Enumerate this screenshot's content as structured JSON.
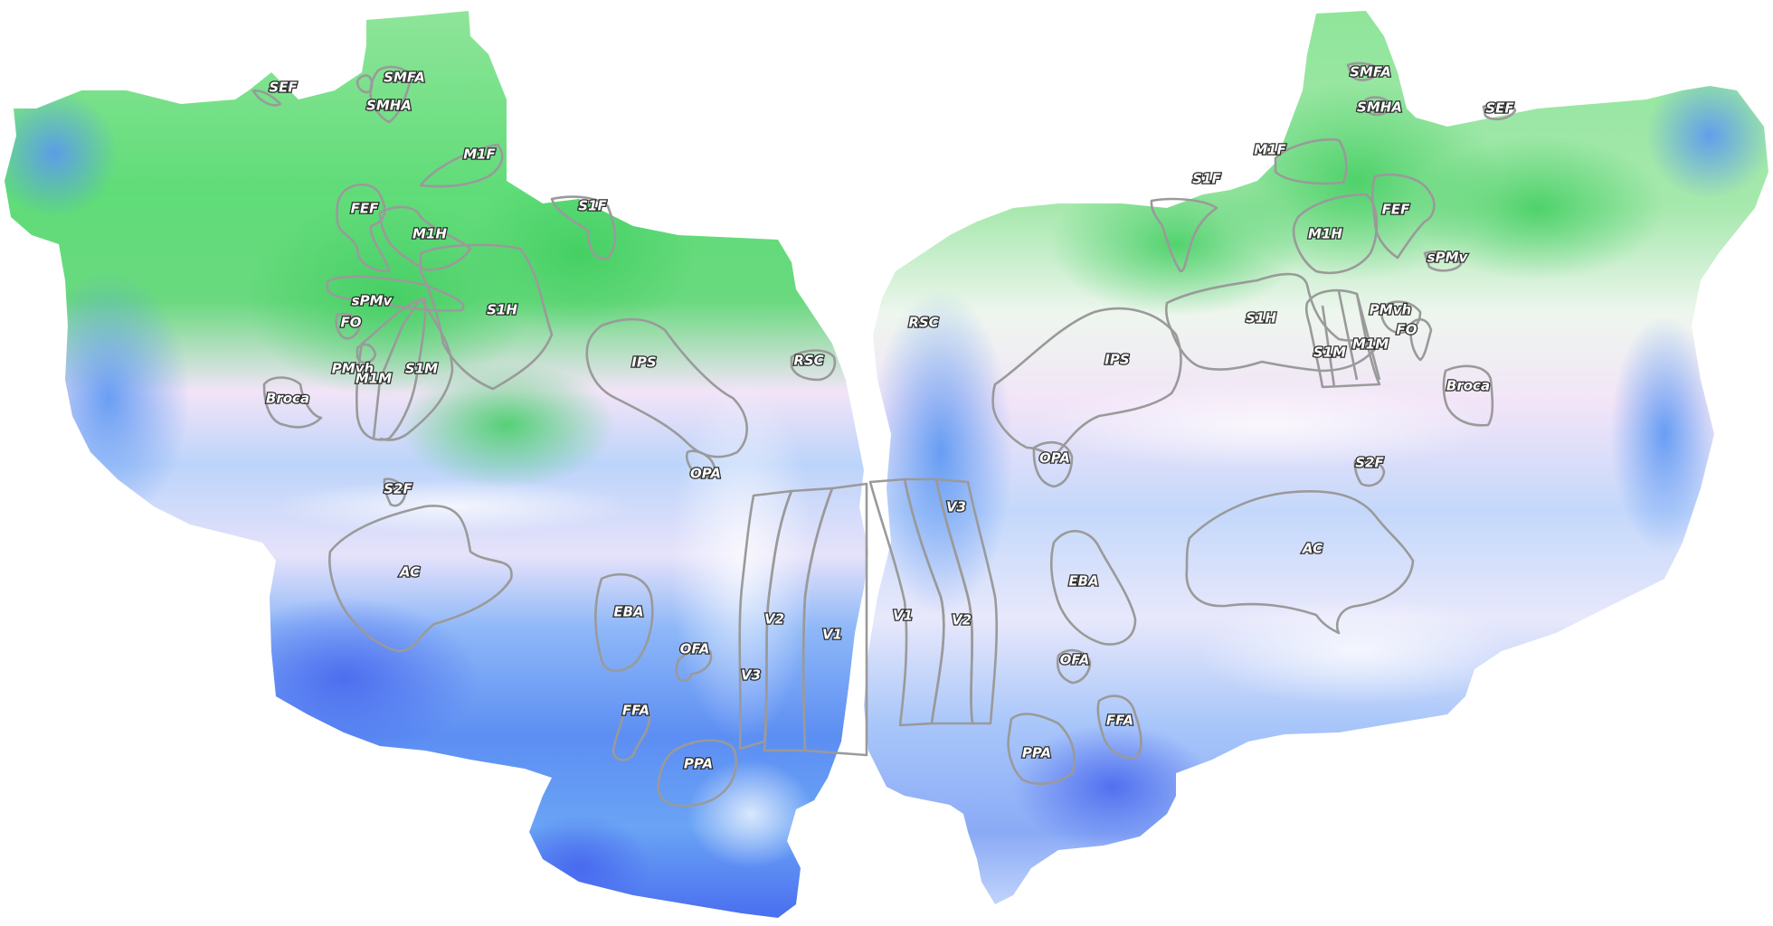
{
  "colors": {
    "green_strong": "#4fd66a",
    "green_light": "#8fe59a",
    "pink": "#f2e4f8",
    "blue_light": "#b8d4fb",
    "blue": "#62a0f5",
    "blue_deep": "#4a6ef0",
    "outline": "#9a9a9a"
  },
  "hemispheres": {
    "left": {
      "labels": {
        "SEF": "SEF",
        "SMFA": "SMFA",
        "SMHA": "SMHA",
        "M1F": "M1F",
        "S1F": "S1F",
        "FEF": "FEF",
        "M1H": "M1H",
        "sPMv": "sPMv",
        "FO": "FO",
        "S1H": "S1H",
        "PMvh": "PMvh",
        "M1M": "M1M",
        "S1M": "S1M",
        "Broca": "Broca",
        "IPS": "IPS",
        "RSC": "RSC",
        "OPA": "OPA",
        "S2F": "S2F",
        "AC": "AC",
        "EBA": "EBA",
        "OFA": "OFA",
        "FFA": "FFA",
        "PPA": "PPA",
        "V1": "V1",
        "V2": "V2",
        "V3": "V3"
      }
    },
    "right": {
      "labels": {
        "SMFA": "SMFA",
        "SMHA": "SMHA",
        "SEF": "SEF",
        "M1F": "M1F",
        "S1F": "S1F",
        "FEF": "FEF",
        "M1H": "M1H",
        "sPMv": "sPMv",
        "PMvh": "PMvh",
        "FO": "FO",
        "S1H": "S1H",
        "M1M": "M1M",
        "S1M": "S1M",
        "Broca": "Broca",
        "IPS": "IPS",
        "RSC": "RSC",
        "OPA": "OPA",
        "S2F": "S2F",
        "AC": "AC",
        "EBA": "EBA",
        "OFA": "OFA",
        "FFA": "FFA",
        "PPA": "PPA",
        "V1": "V1",
        "V2": "V2",
        "V3": "V3"
      }
    }
  }
}
